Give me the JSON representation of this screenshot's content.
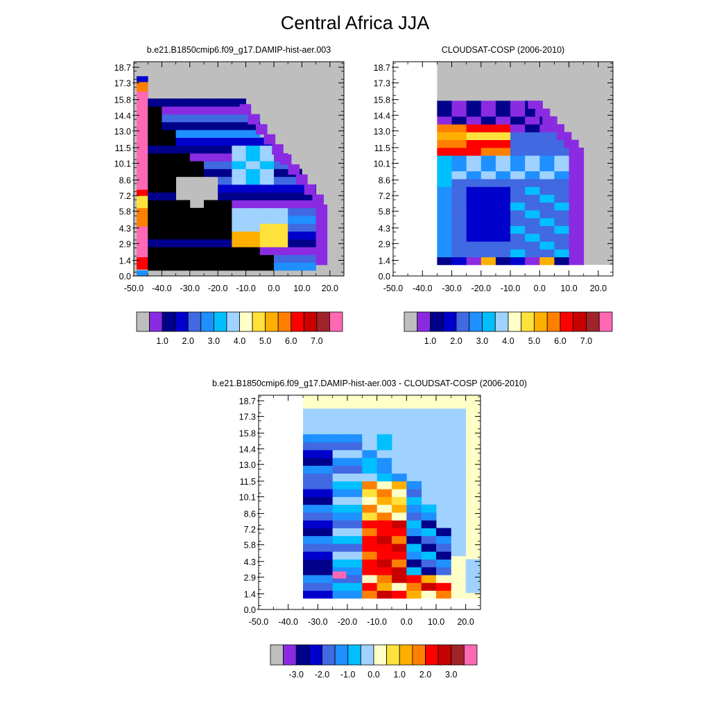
{
  "figure_title": "Central Africa JJA",
  "chart_data": [
    {
      "type": "heatmap",
      "title": "b.e21.B1850cmip6.f09_g17.DAMIP-hist-aer.003",
      "x_ticks": [
        "-50.0",
        "-40.0",
        "-30.0",
        "-20.0",
        "-10.0",
        "0.0",
        "10.0",
        "20.0"
      ],
      "y_ticks": [
        "0.0",
        "1.4",
        "2.9",
        "4.3",
        "5.8",
        "7.2",
        "8.6",
        "10.1",
        "11.5",
        "13.0",
        "14.4",
        "15.8",
        "17.3",
        "18.7"
      ],
      "xlim": [
        -50,
        25
      ],
      "ylim": [
        0,
        19.2
      ],
      "missing_color": "#BEBEBE",
      "colorbar_labels": [
        "1.0",
        "2.0",
        "3.0",
        "4.0",
        "5.0",
        "6.0",
        "7.0"
      ],
      "colorbar_colors": [
        "#BEBEBE",
        "#8A2BE2",
        "#00008B",
        "#0000CD",
        "#4169E1",
        "#1E90FF",
        "#00BFFF",
        "#A0D2FF",
        "#FFFFC8",
        "#FFE13C",
        "#FFAF00",
        "#FF7F00",
        "#FF0000",
        "#C80000",
        "#A0232A",
        "#FF69B4"
      ]
    },
    {
      "type": "heatmap",
      "title": "CLOUDSAT-COSP (2006-2010)",
      "x_ticks": [
        "-50.0",
        "-40.0",
        "-30.0",
        "-20.0",
        "-10.0",
        "0.0",
        "10.0",
        "20.0"
      ],
      "y_ticks": [
        "0.0",
        "1.4",
        "2.9",
        "4.3",
        "5.8",
        "7.2",
        "8.6",
        "10.1",
        "11.5",
        "13.0",
        "14.4",
        "15.8",
        "17.3",
        "18.7"
      ],
      "xlim": [
        -50,
        25
      ],
      "ylim": [
        0,
        19.2
      ],
      "missing_color": "#BEBEBE",
      "colorbar_labels": [
        "1.0",
        "2.0",
        "3.0",
        "4.0",
        "5.0",
        "6.0",
        "7.0"
      ],
      "colorbar_colors": [
        "#BEBEBE",
        "#8A2BE2",
        "#00008B",
        "#0000CD",
        "#4169E1",
        "#1E90FF",
        "#00BFFF",
        "#A0D2FF",
        "#FFFFC8",
        "#FFE13C",
        "#FFAF00",
        "#FF7F00",
        "#FF0000",
        "#C80000",
        "#A0232A",
        "#FF69B4"
      ]
    },
    {
      "type": "heatmap",
      "title": "b.e21.B1850cmip6.f09_g17.DAMIP-hist-aer.003 - CLOUDSAT-COSP (2006-2010)",
      "x_ticks": [
        "-50.0",
        "-40.0",
        "-30.0",
        "-20.0",
        "-10.0",
        "0.0",
        "10.0",
        "20.0"
      ],
      "y_ticks": [
        "0.0",
        "1.4",
        "2.9",
        "4.3",
        "5.8",
        "7.2",
        "8.6",
        "10.1",
        "11.5",
        "13.0",
        "14.4",
        "15.8",
        "17.3",
        "18.7"
      ],
      "xlim": [
        -50,
        25
      ],
      "ylim": [
        0,
        19.2
      ],
      "colorbar_labels": [
        "-3.0",
        "-2.0",
        "-1.0",
        "0.0",
        "1.0",
        "2.0",
        "3.0"
      ],
      "colorbar_colors": [
        "#BEBEBE",
        "#8A2BE2",
        "#00008B",
        "#0000CD",
        "#4169E1",
        "#1E90FF",
        "#00BFFF",
        "#A0D2FF",
        "#FFFFC8",
        "#FFE13C",
        "#FFAF00",
        "#FF7F00",
        "#FF0000",
        "#C80000",
        "#A0232A",
        "#FF69B4"
      ]
    }
  ]
}
